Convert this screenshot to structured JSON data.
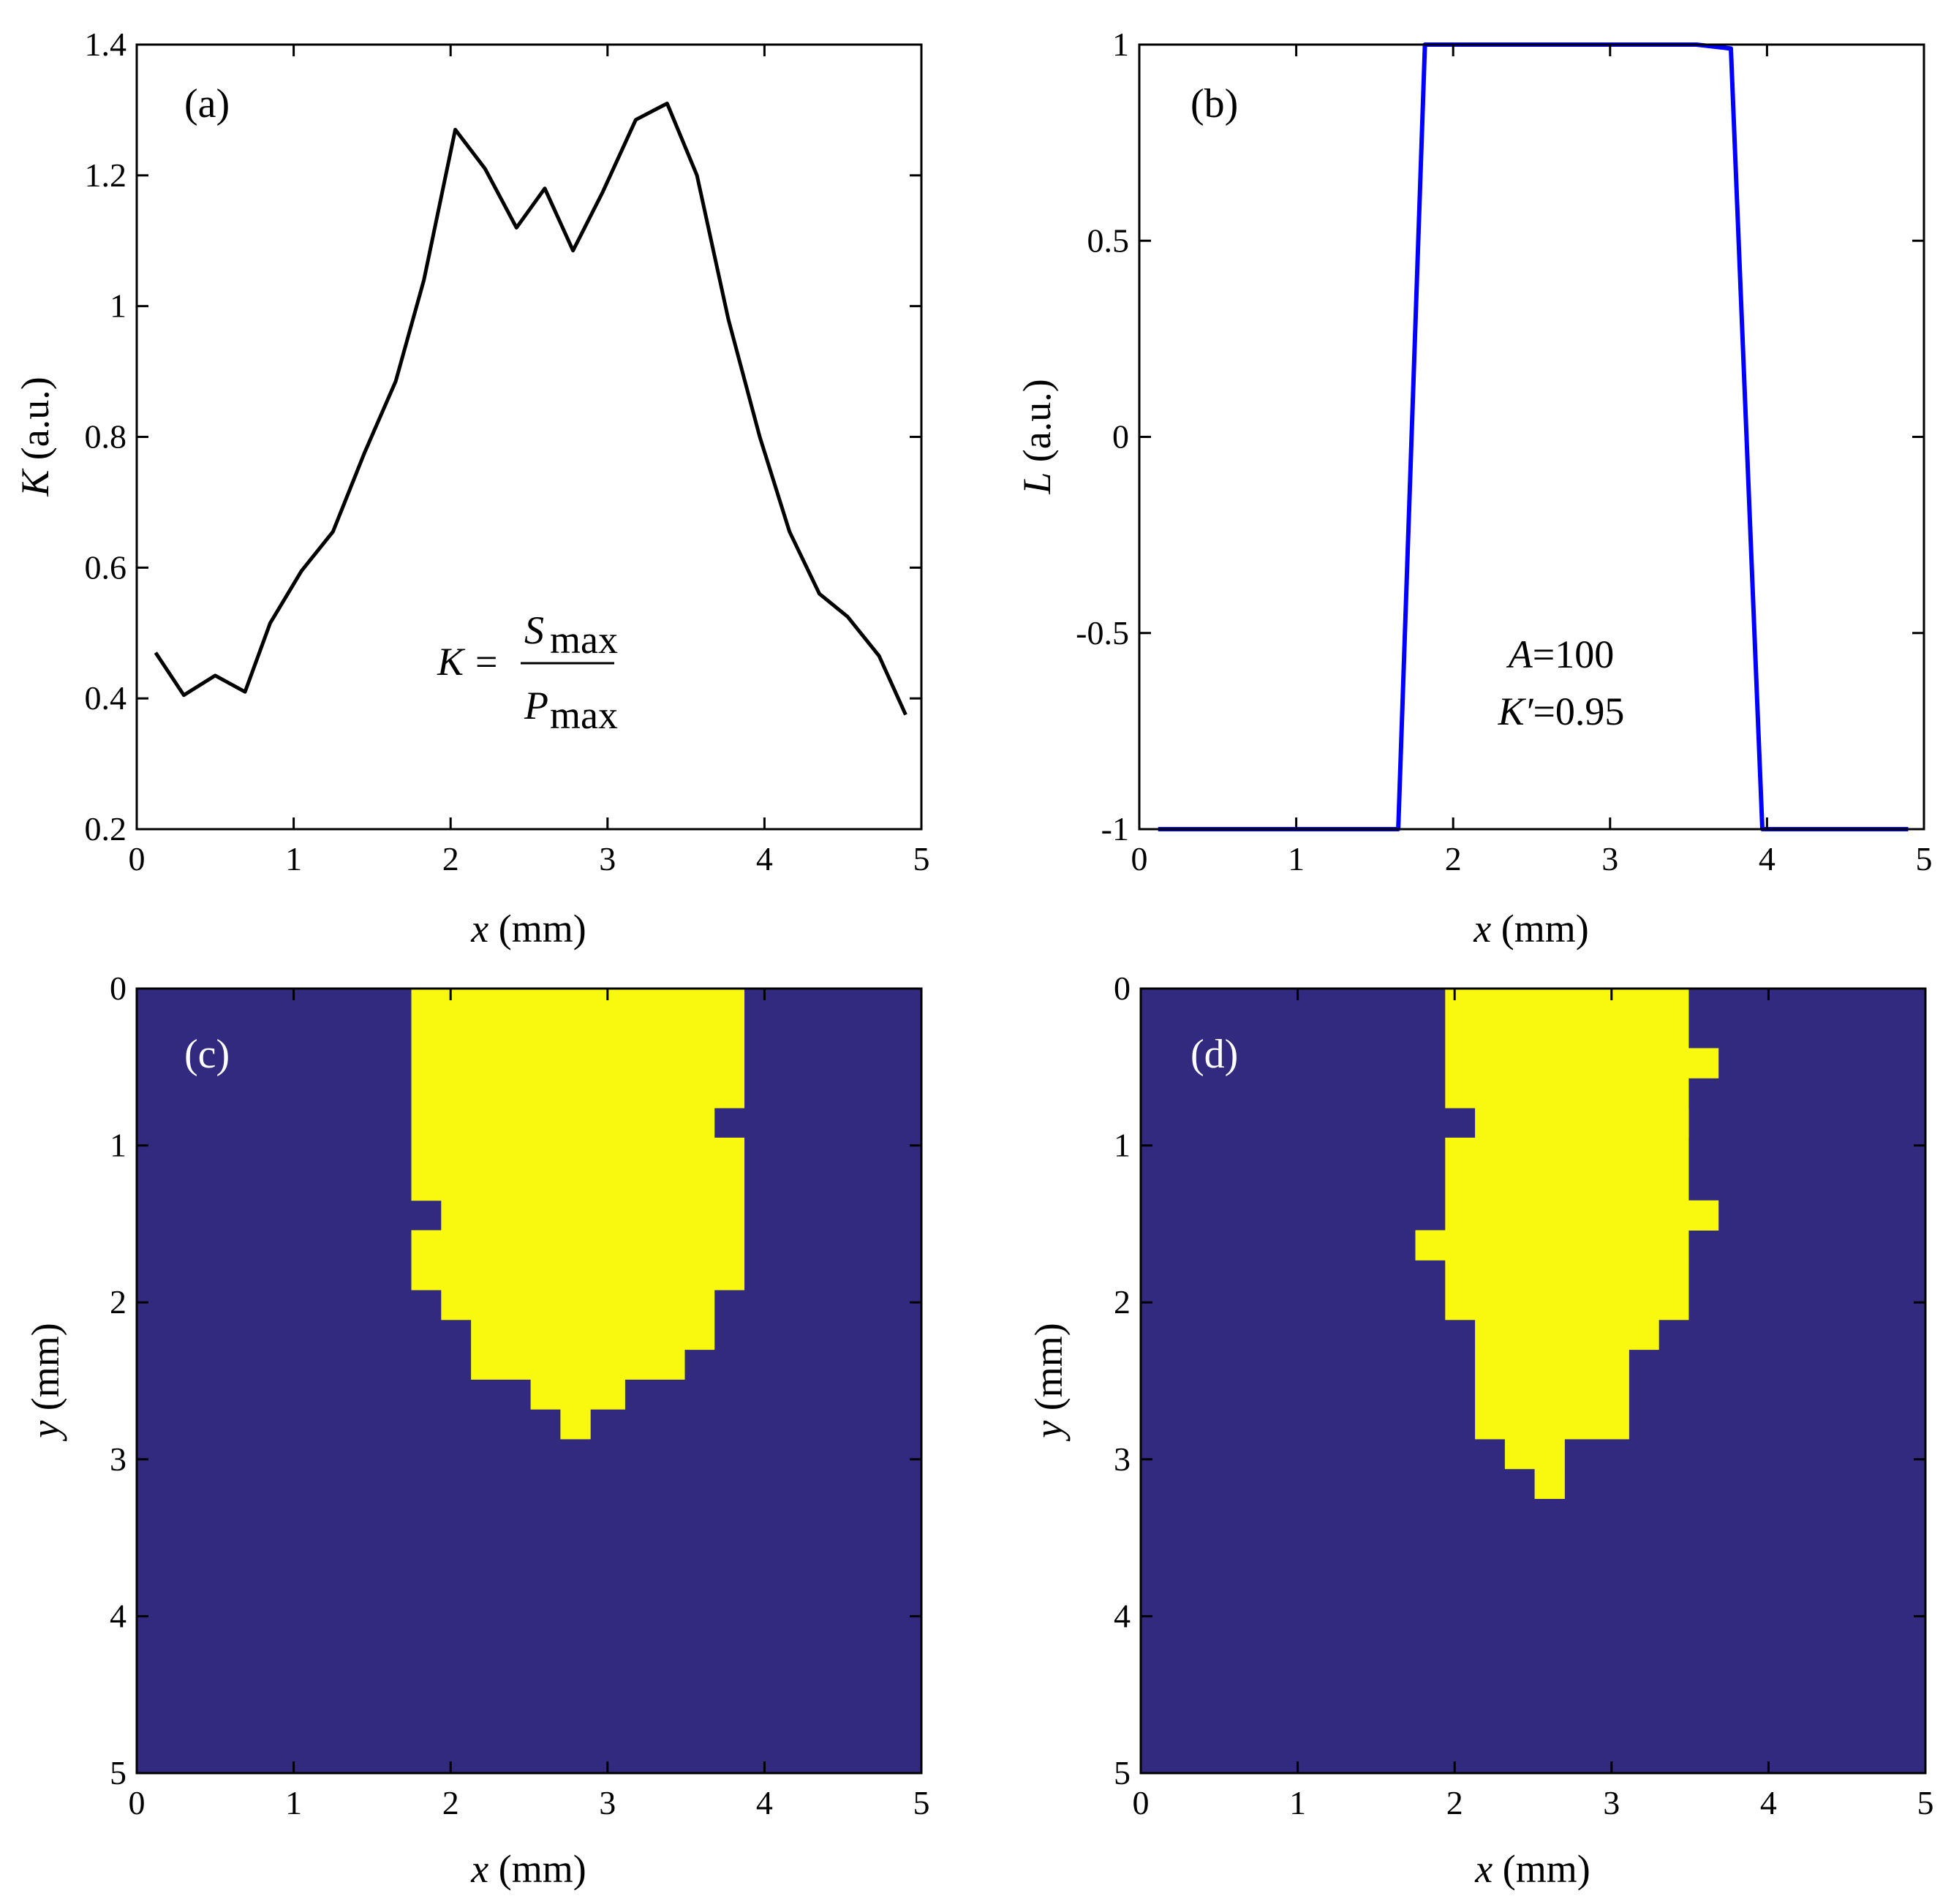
{
  "colors": {
    "line_a": "#000000",
    "line_b": "#0000ff",
    "map_background": "#322a7e",
    "map_foreground": "#f9f90f",
    "panel_label_dark": "#000000",
    "panel_label_light": "#ffffff"
  },
  "chart_data": [
    {
      "id": "a",
      "type": "line",
      "panel_label": "(a)",
      "xlabel_var": "x",
      "xlabel_unit": "(mm)",
      "ylabel_var": "K",
      "ylabel_unit": "(a.u.)",
      "xlim": [
        0,
        5
      ],
      "ylim": [
        0.2,
        1.4
      ],
      "xticks": [
        "0",
        "1",
        "2",
        "3",
        "4",
        "5"
      ],
      "yticks": [
        "0.2",
        "0.4",
        "0.6",
        "0.8",
        "1",
        "1.2",
        "1.4"
      ],
      "series": [
        {
          "name": "K",
          "x": [
            0.12,
            0.3,
            0.5,
            0.69,
            0.85,
            1.05,
            1.25,
            1.45,
            1.65,
            1.83,
            2.03,
            2.22,
            2.42,
            2.6,
            2.78,
            2.97,
            3.18,
            3.38,
            3.57,
            3.77,
            3.97,
            4.16,
            4.35,
            4.53,
            4.73,
            4.9
          ],
          "y": [
            0.47,
            0.405,
            0.435,
            0.41,
            0.515,
            0.595,
            0.655,
            0.775,
            0.885,
            1.04,
            1.27,
            1.21,
            1.12,
            1.18,
            1.085,
            1.175,
            1.285,
            1.31,
            1.2,
            0.98,
            0.8,
            0.655,
            0.56,
            0.525,
            0.465,
            0.375
          ]
        }
      ],
      "formula": {
        "lhs": "K",
        "eq": "=",
        "num_var": "S",
        "num_sub": "max",
        "den_var": "P",
        "den_sub": "max"
      }
    },
    {
      "id": "b",
      "type": "line",
      "panel_label": "(b)",
      "xlabel_var": "x",
      "xlabel_unit": "(mm)",
      "ylabel_var": "L",
      "ylabel_unit": "(a.u.)",
      "xlim": [
        0,
        5
      ],
      "ylim": [
        -1,
        1
      ],
      "xticks": [
        "0",
        "1",
        "2",
        "3",
        "4",
        "5"
      ],
      "yticks": [
        "-1",
        "-0.5",
        "0",
        "0.5",
        "1"
      ],
      "series": [
        {
          "name": "L",
          "x": [
            0.12,
            1.65,
            1.82,
            3.55,
            3.77,
            3.97,
            4.9
          ],
          "y": [
            -1,
            -1,
            1,
            1,
            0.99,
            -1,
            -1
          ]
        }
      ],
      "annotation": {
        "line1_var": "A",
        "line1_val": "=100",
        "line2_var": "K′",
        "line2_val": "=0.95"
      }
    },
    {
      "id": "c",
      "type": "heatmap",
      "panel_label": "(c)",
      "xlabel_var": "x",
      "xlabel_unit": "(mm)",
      "ylabel_var": "y",
      "ylabel_unit": "(mm)",
      "xlim": [
        0,
        5
      ],
      "ylim": [
        0,
        5
      ],
      "xticks": [
        "0",
        "1",
        "2",
        "3",
        "4",
        "5"
      ],
      "yticks": [
        "0",
        "1",
        "2",
        "3",
        "4",
        "5"
      ],
      "cell_size_mm": 0.19,
      "foreground_rows": [
        [
          0.0,
          0.76,
          1.75,
          3.87
        ],
        [
          0.76,
          0.95,
          1.75,
          3.68
        ],
        [
          0.95,
          1.35,
          1.75,
          3.87
        ],
        [
          1.35,
          1.54,
          1.94,
          3.87
        ],
        [
          1.54,
          1.92,
          1.75,
          3.87
        ],
        [
          1.92,
          2.11,
          1.94,
          3.68
        ],
        [
          2.11,
          2.3,
          2.13,
          3.68
        ],
        [
          2.3,
          2.49,
          2.13,
          3.49
        ],
        [
          2.49,
          2.68,
          2.51,
          3.11
        ],
        [
          2.68,
          2.87,
          2.7,
          2.89
        ]
      ]
    },
    {
      "id": "d",
      "type": "heatmap",
      "panel_label": "(d)",
      "xlabel_var": "x",
      "xlabel_unit": "(mm)",
      "ylabel_var": "y",
      "ylabel_unit": "(mm)",
      "xlim": [
        0,
        5
      ],
      "ylim": [
        0,
        5
      ],
      "xticks": [
        "0",
        "1",
        "2",
        "3",
        "4",
        "5"
      ],
      "yticks": [
        "0",
        "1",
        "2",
        "3",
        "4",
        "5"
      ],
      "cell_size_mm": 0.19,
      "foreground_rows": [
        [
          0.0,
          0.38,
          1.94,
          3.49
        ],
        [
          0.38,
          0.57,
          1.94,
          3.68
        ],
        [
          0.57,
          0.76,
          1.94,
          3.49
        ],
        [
          0.76,
          0.95,
          2.13,
          3.49
        ],
        [
          0.95,
          1.35,
          1.94,
          3.49
        ],
        [
          1.35,
          1.54,
          1.94,
          3.68
        ],
        [
          1.54,
          1.73,
          1.75,
          3.49
        ],
        [
          1.73,
          2.11,
          1.94,
          3.49
        ],
        [
          2.11,
          2.3,
          2.13,
          3.3
        ],
        [
          2.3,
          2.87,
          2.13,
          3.11
        ],
        [
          2.87,
          3.06,
          2.32,
          2.7
        ],
        [
          3.06,
          3.25,
          2.51,
          2.7
        ]
      ]
    }
  ]
}
